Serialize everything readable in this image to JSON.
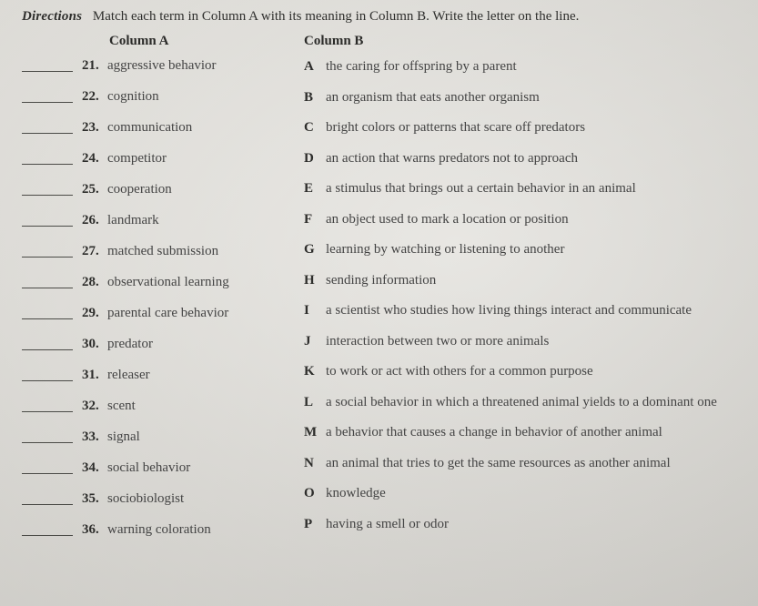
{
  "directions": {
    "label": "Directions",
    "text": "Match each term in Column A with its meaning in Column B. Write the letter on the line."
  },
  "columnA": {
    "heading": "Column A",
    "items": [
      {
        "num": "21.",
        "term": "aggressive behavior"
      },
      {
        "num": "22.",
        "term": "cognition"
      },
      {
        "num": "23.",
        "term": "communication"
      },
      {
        "num": "24.",
        "term": "competitor"
      },
      {
        "num": "25.",
        "term": "cooperation"
      },
      {
        "num": "26.",
        "term": "landmark"
      },
      {
        "num": "27.",
        "term": "matched submission"
      },
      {
        "num": "28.",
        "term": "observational learning"
      },
      {
        "num": "29.",
        "term": "parental care behavior"
      },
      {
        "num": "30.",
        "term": "predator"
      },
      {
        "num": "31.",
        "term": "releaser"
      },
      {
        "num": "32.",
        "term": "scent"
      },
      {
        "num": "33.",
        "term": "signal"
      },
      {
        "num": "34.",
        "term": "social behavior"
      },
      {
        "num": "35.",
        "term": "sociobiologist"
      },
      {
        "num": "36.",
        "term": "warning coloration"
      }
    ]
  },
  "columnB": {
    "heading": "Column B",
    "items": [
      {
        "letter": "A",
        "def": "the caring for offspring by a parent"
      },
      {
        "letter": "B",
        "def": "an organism that eats another organism"
      },
      {
        "letter": "C",
        "def": "bright colors or patterns that scare off predators"
      },
      {
        "letter": "D",
        "def": "an action that warns predators not to approach"
      },
      {
        "letter": "E",
        "def": "a stimulus that brings out a certain behavior in an animal"
      },
      {
        "letter": "F",
        "def": "an object used to mark a location or position"
      },
      {
        "letter": "G",
        "def": "learning by watching or listening to another"
      },
      {
        "letter": "H",
        "def": "sending information"
      },
      {
        "letter": "I",
        "def": "a scientist who studies how living things interact and communicate"
      },
      {
        "letter": "J",
        "def": "interaction between two or more animals"
      },
      {
        "letter": "K",
        "def": "to work or act with others for a common purpose"
      },
      {
        "letter": "L",
        "def": "a social behavior in which a threatened animal yields to a dominant one"
      },
      {
        "letter": "M",
        "def": "a behavior that causes a change in behavior of another animal"
      },
      {
        "letter": "N",
        "def": "an animal that tries to get the same resources as another animal"
      },
      {
        "letter": "O",
        "def": "knowledge"
      },
      {
        "letter": "P",
        "def": "having a smell or odor"
      }
    ]
  }
}
